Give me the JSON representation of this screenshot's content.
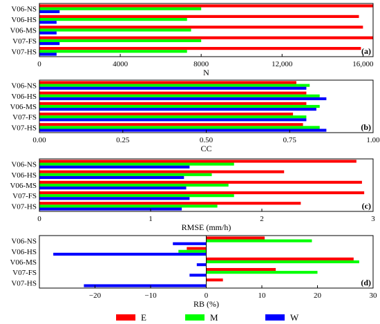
{
  "legend": {
    "entries": [
      {
        "label": "E",
        "color": "#ff0000"
      },
      {
        "label": "M",
        "color": "#00ff00"
      },
      {
        "label": "W",
        "color": "#0000ff"
      }
    ]
  },
  "chart_data": [
    {
      "type": "bar",
      "orientation": "horizontal",
      "panel_tag": "(a)",
      "xlabel": "N",
      "xlim": [
        0,
        16500
      ],
      "xticks": [
        0,
        4000,
        8000,
        12000,
        16000
      ],
      "xtick_labels": [
        "0",
        "4000",
        "8000",
        "12,000",
        "16,000"
      ],
      "categories": [
        "V06-NS",
        "V06-HS",
        "V06-MS",
        "V07-FS",
        "V07-HS"
      ],
      "series": [
        {
          "name": "E",
          "color": "#ff0000",
          "values": [
            16500,
            15800,
            16000,
            16500,
            15900
          ]
        },
        {
          "name": "M",
          "color": "#00ff00",
          "values": [
            8000,
            7300,
            7500,
            8000,
            7300
          ]
        },
        {
          "name": "W",
          "color": "#0000ff",
          "values": [
            1000,
            850,
            850,
            1000,
            850
          ]
        }
      ]
    },
    {
      "type": "bar",
      "orientation": "horizontal",
      "panel_tag": "(b)",
      "xlabel": "CC",
      "xlim": [
        0,
        1
      ],
      "xticks": [
        0,
        0.25,
        0.5,
        0.75,
        1
      ],
      "xtick_labels": [
        "0.00",
        "0.25",
        "0.50",
        "0.75",
        "1.00"
      ],
      "categories": [
        "V06-NS",
        "V06-HS",
        "V06-MS",
        "V07-FS",
        "V07-HS"
      ],
      "series": [
        {
          "name": "E",
          "color": "#ff0000",
          "values": [
            0.77,
            0.8,
            0.8,
            0.76,
            0.79
          ]
        },
        {
          "name": "M",
          "color": "#00ff00",
          "values": [
            0.81,
            0.84,
            0.84,
            0.8,
            0.84
          ]
        },
        {
          "name": "W",
          "color": "#0000ff",
          "values": [
            0.8,
            0.86,
            0.83,
            0.8,
            0.86
          ]
        }
      ]
    },
    {
      "type": "bar",
      "orientation": "horizontal",
      "panel_tag": "(c)",
      "xlabel": "RMSE (mm/h)",
      "xlim": [
        0,
        3
      ],
      "xticks": [
        0,
        1,
        2,
        3
      ],
      "xtick_labels": [
        "0",
        "1",
        "2",
        "3"
      ],
      "categories": [
        "V06-NS",
        "V06-HS",
        "V06-MS",
        "V07-FS",
        "V07-HS"
      ],
      "series": [
        {
          "name": "E",
          "color": "#ff0000",
          "values": [
            2.85,
            2.2,
            2.9,
            2.92,
            2.35
          ]
        },
        {
          "name": "M",
          "color": "#00ff00",
          "values": [
            1.75,
            1.55,
            1.7,
            1.75,
            1.6
          ]
        },
        {
          "name": "W",
          "color": "#0000ff",
          "values": [
            1.35,
            1.3,
            1.32,
            1.35,
            1.28
          ]
        }
      ]
    },
    {
      "type": "bar",
      "orientation": "horizontal",
      "panel_tag": "(d)",
      "xlabel": "RB (%)",
      "xlim": [
        -30,
        30
      ],
      "xticks": [
        -20,
        -10,
        0,
        10,
        20,
        30
      ],
      "xtick_labels": [
        "−20",
        "−10",
        "0",
        "10",
        "20",
        "30"
      ],
      "categories": [
        "V06-NS",
        "V06-HS",
        "V06-MS",
        "V07-FS",
        "V07-HS"
      ],
      "series": [
        {
          "name": "E",
          "color": "#ff0000",
          "values": [
            10.5,
            -3.5,
            26.5,
            12.5,
            3
          ]
        },
        {
          "name": "M",
          "color": "#00ff00",
          "values": [
            19,
            -5,
            27.5,
            20,
            0
          ]
        },
        {
          "name": "W",
          "color": "#0000ff",
          "values": [
            -6,
            -27.5,
            -1.7,
            -3,
            -22
          ]
        }
      ]
    }
  ]
}
